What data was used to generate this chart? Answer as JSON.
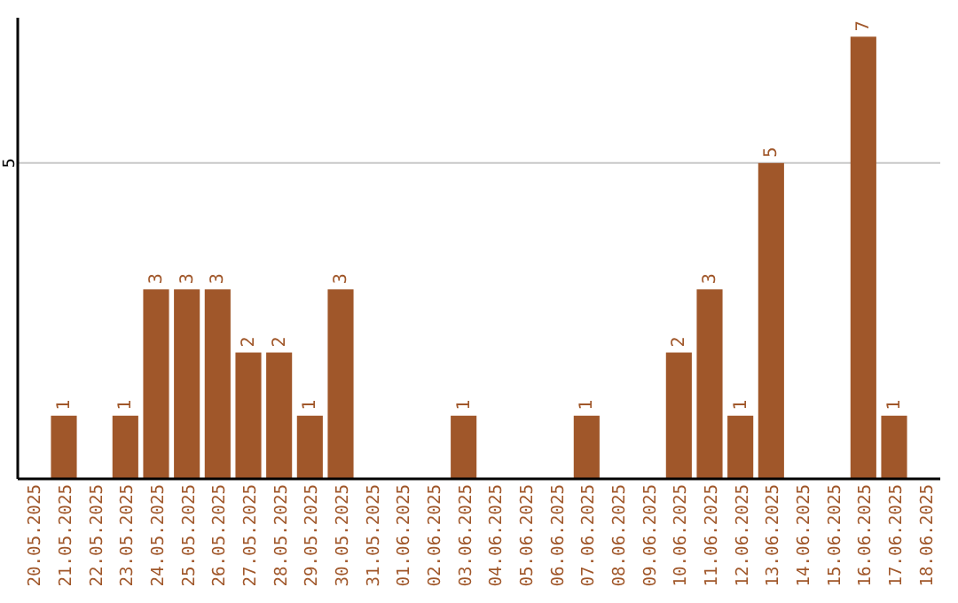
{
  "chart_data": {
    "type": "bar",
    "categories": [
      "20.05.2025",
      "21.05.2025",
      "22.05.2025",
      "23.05.2025",
      "24.05.2025",
      "25.05.2025",
      "26.05.2025",
      "27.05.2025",
      "28.05.2025",
      "29.05.2025",
      "30.05.2025",
      "31.05.2025",
      "01.06.2025",
      "02.06.2025",
      "03.06.2025",
      "04.06.2025",
      "05.06.2025",
      "06.06.2025",
      "07.06.2025",
      "08.06.2025",
      "09.06.2025",
      "10.06.2025",
      "11.06.2025",
      "12.06.2025",
      "13.06.2025",
      "14.06.2025",
      "15.06.2025",
      "16.06.2025",
      "17.06.2025",
      "18.06.2025"
    ],
    "values": [
      0,
      1,
      0,
      1,
      3,
      3,
      3,
      2,
      2,
      1,
      3,
      0,
      0,
      0,
      1,
      0,
      0,
      0,
      1,
      0,
      0,
      2,
      3,
      1,
      5,
      0,
      0,
      7,
      1,
      0
    ],
    "value_labels": [
      null,
      "1",
      null,
      "1",
      "3",
      "3",
      "3",
      "2",
      "2",
      "1",
      "3",
      null,
      null,
      null,
      "1",
      null,
      null,
      null,
      "1",
      null,
      null,
      "2",
      "3",
      "1",
      "5",
      null,
      null,
      "7",
      "1",
      null
    ],
    "color": "#a0572a",
    "ylim": [
      0,
      7.3
    ],
    "yticks": [
      5
    ],
    "grid": "y"
  }
}
